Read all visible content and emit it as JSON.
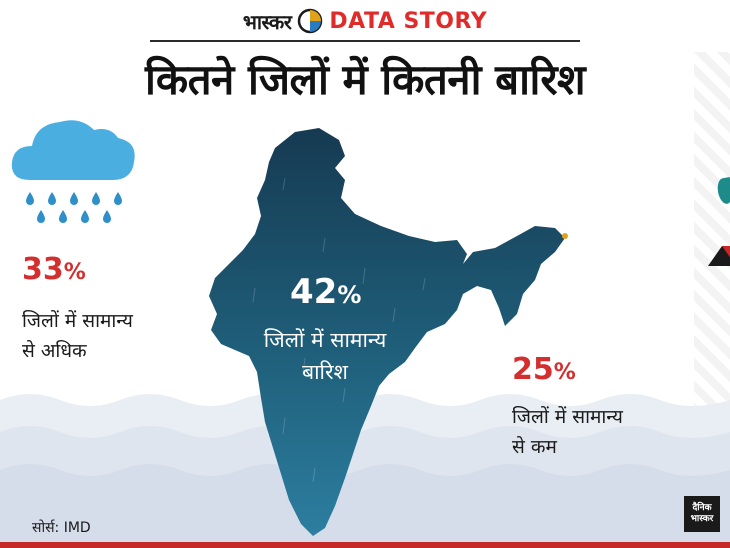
{
  "header": {
    "brand_hindi": "भास्कर",
    "brand_story": "DATA STORY"
  },
  "title": "कितने जिलों में कितनी बारिश",
  "stats": {
    "above_normal": {
      "value": "33",
      "unit": "%",
      "line1": "जिलों में सामान्य",
      "line2": "से अधिक"
    },
    "normal": {
      "value": "42",
      "unit": "%",
      "line1": "जिलों में सामान्य",
      "line2": "बारिश"
    },
    "below_normal": {
      "value": "25",
      "unit": "%",
      "line1": "जिलों में सामान्य",
      "line2": "से कम"
    }
  },
  "source": "सोर्स: IMD",
  "footer_logo": {
    "line1": "दैनिक",
    "line2": "भास्कर"
  },
  "colors": {
    "accent_red": "#d32f2f",
    "map_fill": "#1f5f78",
    "cloud": "#4aaee0",
    "water": "#dde3ee"
  },
  "icons": [
    "pie-chart-logo-icon",
    "rain-cloud-icon",
    "india-map-icon"
  ]
}
